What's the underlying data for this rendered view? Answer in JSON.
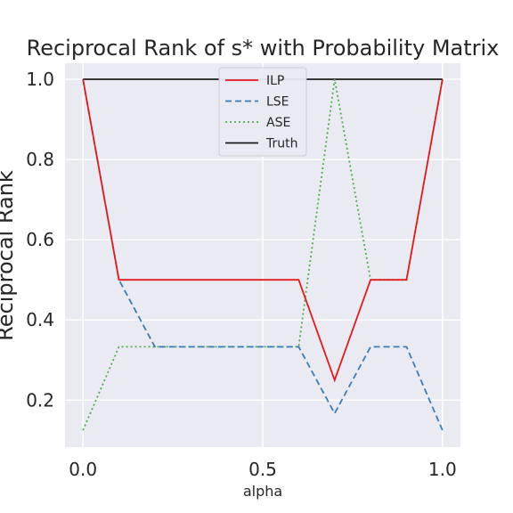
{
  "chart_data": {
    "type": "line",
    "title": "Reciprocal Rank of s* with Probability Matrix",
    "xlabel": "alpha",
    "ylabel": "Reciprocal Rank",
    "xlim": [
      -0.05,
      1.05
    ],
    "ylim": [
      0.083,
      1.04
    ],
    "xticks": [
      "0.0",
      "0.5",
      "1.0"
    ],
    "yticks": [
      "0.2",
      "0.4",
      "0.6",
      "0.8",
      "1.0"
    ],
    "grid": true,
    "legend_position": "top-center",
    "x": [
      0.0,
      0.1,
      0.2,
      0.3,
      0.4,
      0.5,
      0.6,
      0.7,
      0.8,
      0.9,
      1.0
    ],
    "series": [
      {
        "name": "ILP",
        "color": "#e41a1c",
        "dash": "solid",
        "values": [
          1.0,
          0.5,
          0.5,
          0.5,
          0.5,
          0.5,
          0.5,
          0.25,
          0.5,
          0.5,
          1.0
        ]
      },
      {
        "name": "LSE",
        "color": "#377eb8",
        "dash": "dashed",
        "values": [
          1.0,
          0.5,
          0.333,
          0.333,
          0.333,
          0.333,
          0.333,
          0.167,
          0.333,
          0.333,
          0.125
        ]
      },
      {
        "name": "ASE",
        "color": "#4daf4a",
        "dash": "dotted",
        "values": [
          0.125,
          0.333,
          0.333,
          0.333,
          0.333,
          0.333,
          0.333,
          1.0,
          0.5,
          0.5,
          1.0
        ]
      },
      {
        "name": "Truth",
        "color": "#1a1a1a",
        "dash": "solid",
        "values": [
          1.0,
          1.0,
          1.0,
          1.0,
          1.0,
          1.0,
          1.0,
          1.0,
          1.0,
          1.0,
          1.0
        ]
      }
    ],
    "colors": {
      "plot_background": "#eaeaf2",
      "grid": "#ffffff",
      "text": "#262626"
    }
  }
}
